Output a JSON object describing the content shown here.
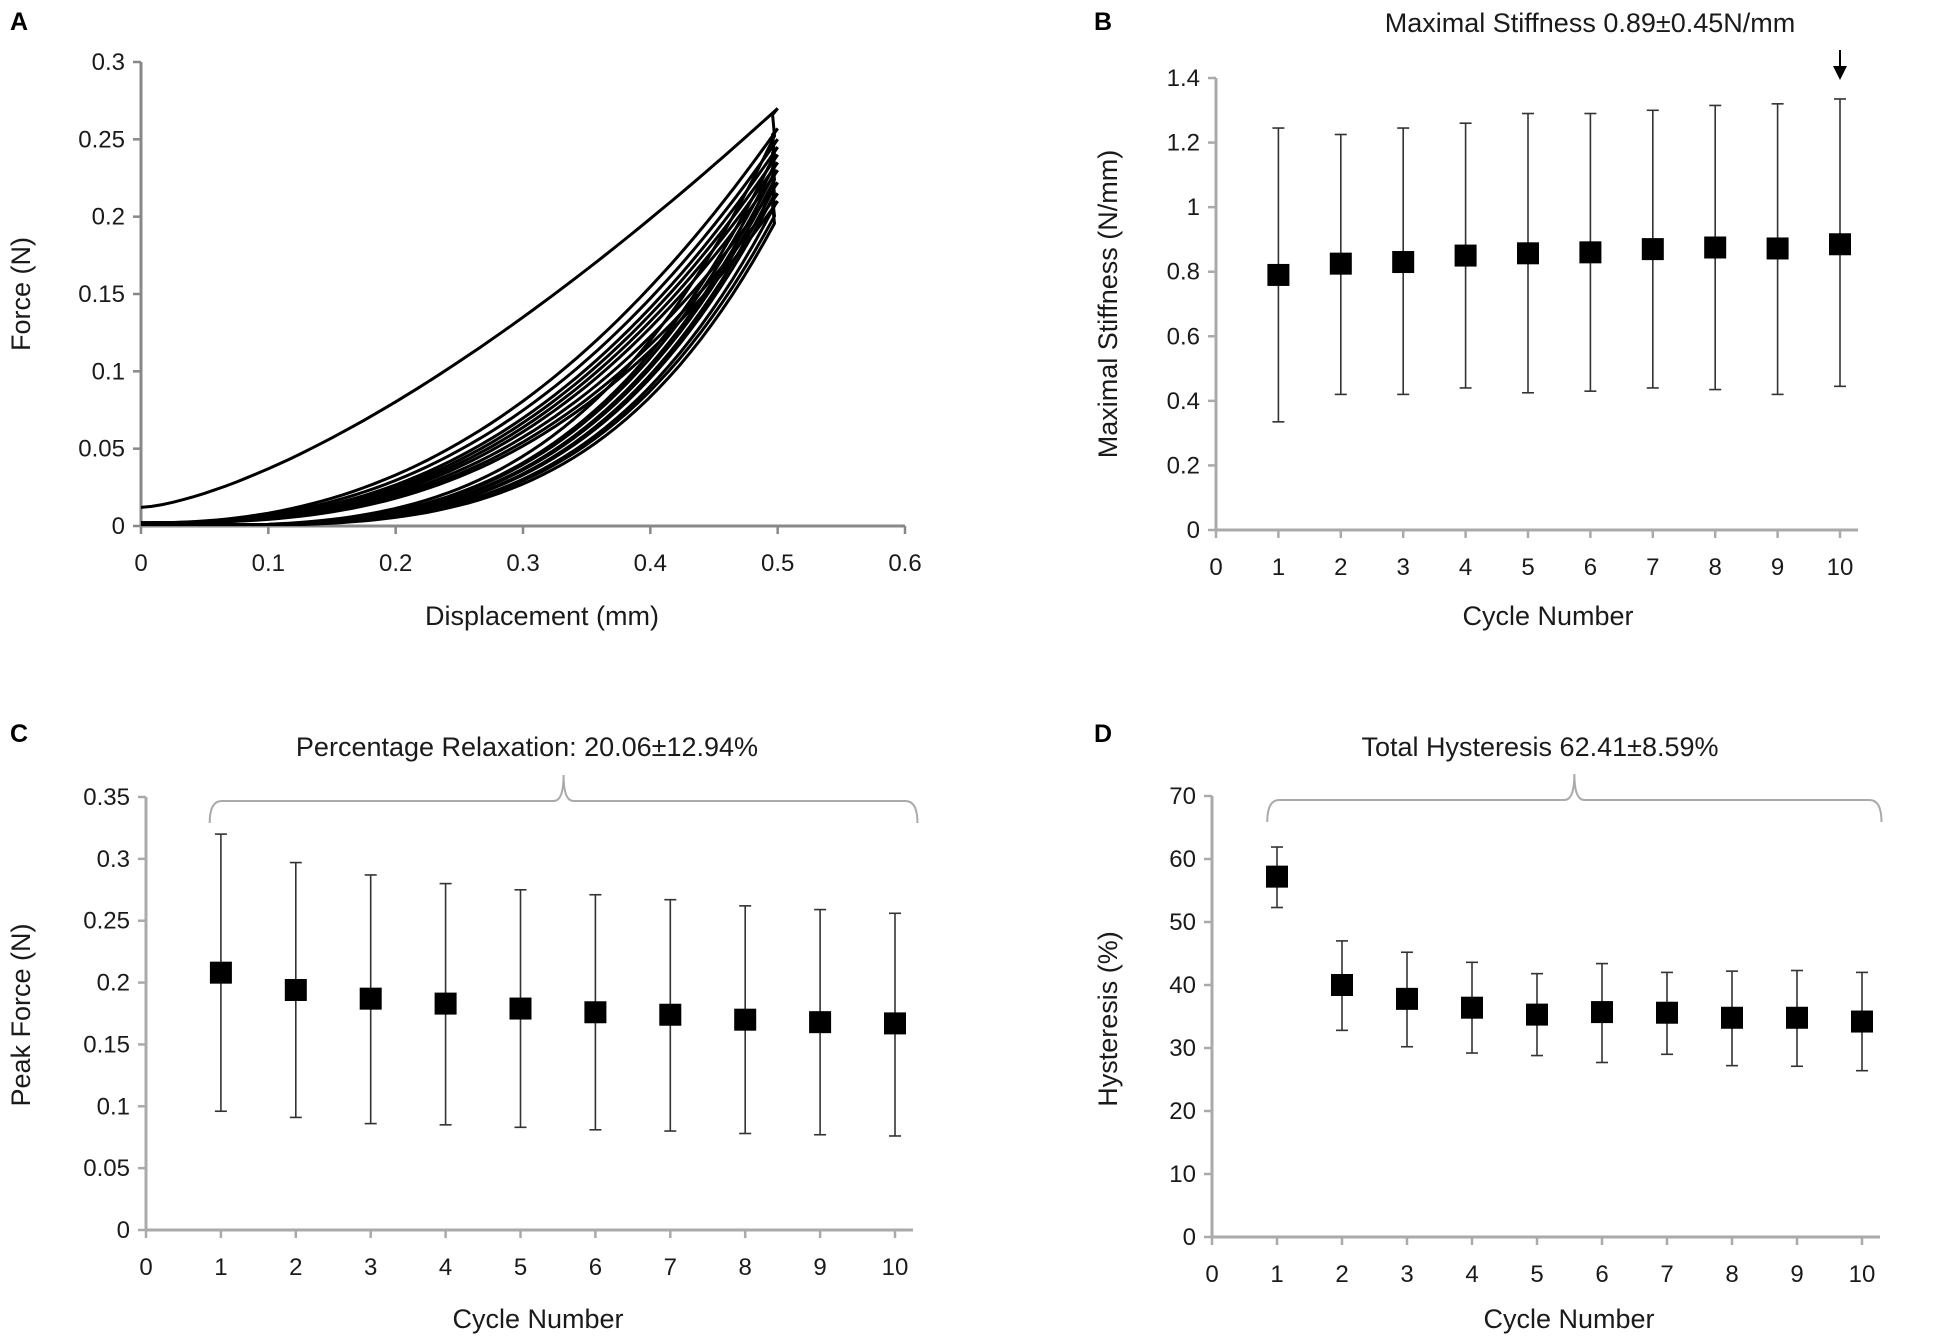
{
  "chart_data": [
    {
      "panel": "A",
      "type": "line",
      "title": "",
      "xlabel": "Displacement (mm)",
      "ylabel": "Force (N)",
      "xlim": [
        0,
        0.6
      ],
      "ylim": [
        0,
        0.3
      ],
      "xticks": [
        "0",
        "0.1",
        "0.2",
        "0.3",
        "0.4",
        "0.5",
        "0.6"
      ],
      "yticks": [
        "0",
        "0.05",
        "0.1",
        "0.15",
        "0.2",
        "0.25",
        "0.3"
      ],
      "max_displacement": 0.5,
      "cycles": [
        {
          "cycle": 1,
          "peak_force": 0.27,
          "start_force": 0.012,
          "loading_exponent": 1.45,
          "unloading_exponent": 3.4
        },
        {
          "cycle": 2,
          "peak_force": 0.257,
          "start_force": 0.002,
          "loading_exponent": 2.3,
          "unloading_exponent": 3.5
        },
        {
          "cycle": 3,
          "peak_force": 0.25,
          "start_force": 0.002,
          "loading_exponent": 2.4,
          "unloading_exponent": 3.5
        },
        {
          "cycle": 4,
          "peak_force": 0.245,
          "start_force": 0.002,
          "loading_exponent": 2.5,
          "unloading_exponent": 3.6
        },
        {
          "cycle": 5,
          "peak_force": 0.24,
          "start_force": 0.002,
          "loading_exponent": 2.55,
          "unloading_exponent": 3.6
        },
        {
          "cycle": 6,
          "peak_force": 0.235,
          "start_force": 0.002,
          "loading_exponent": 2.6,
          "unloading_exponent": 3.7
        },
        {
          "cycle": 7,
          "peak_force": 0.23,
          "start_force": 0.002,
          "loading_exponent": 2.65,
          "unloading_exponent": 3.7
        },
        {
          "cycle": 8,
          "peak_force": 0.222,
          "start_force": 0.002,
          "loading_exponent": 2.7,
          "unloading_exponent": 3.8
        },
        {
          "cycle": 9,
          "peak_force": 0.215,
          "start_force": 0.002,
          "loading_exponent": 2.75,
          "unloading_exponent": 3.8
        },
        {
          "cycle": 10,
          "peak_force": 0.21,
          "start_force": 0.002,
          "loading_exponent": 2.8,
          "unloading_exponent": 3.9
        }
      ]
    },
    {
      "panel": "B",
      "type": "scatter",
      "title": "Maximal Stiffness 0.89±0.45N/mm",
      "xlabel": "Cycle Number",
      "ylabel": "Maximal Stiffness  (N/mm)",
      "xlim": [
        0,
        10
      ],
      "ylim": [
        0,
        1.4
      ],
      "xticks": [
        "0",
        "1",
        "2",
        "3",
        "4",
        "5",
        "6",
        "7",
        "8",
        "9",
        "10"
      ],
      "yticks": [
        "0",
        "0.2",
        "0.4",
        "0.6",
        "0.8",
        "1",
        "1.2",
        "1.4"
      ],
      "x": [
        1,
        2,
        3,
        4,
        5,
        6,
        7,
        8,
        9,
        10
      ],
      "values": [
        0.79,
        0.825,
        0.83,
        0.85,
        0.857,
        0.86,
        0.87,
        0.875,
        0.872,
        0.885
      ],
      "error_low": [
        0.335,
        0.42,
        0.42,
        0.44,
        0.425,
        0.43,
        0.44,
        0.435,
        0.42,
        0.445
      ],
      "error_high": [
        1.245,
        1.225,
        1.245,
        1.26,
        1.29,
        1.29,
        1.3,
        1.315,
        1.32,
        1.335
      ],
      "annotation": {
        "type": "arrow",
        "at_x": 10
      }
    },
    {
      "panel": "C",
      "type": "scatter",
      "title": "Percentage Relaxation: 20.06±12.94%",
      "xlabel": "Cycle Number",
      "ylabel": "Peak Force (N)",
      "xlim": [
        0,
        10
      ],
      "ylim": [
        0,
        0.35
      ],
      "xticks": [
        "0",
        "1",
        "2",
        "3",
        "4",
        "5",
        "6",
        "7",
        "8",
        "9",
        "10"
      ],
      "yticks": [
        "0",
        "0.05",
        "0.1",
        "0.15",
        "0.2",
        "0.25",
        "0.3",
        "0.35"
      ],
      "x": [
        1,
        2,
        3,
        4,
        5,
        6,
        7,
        8,
        9,
        10
      ],
      "values": [
        0.208,
        0.194,
        0.187,
        0.183,
        0.179,
        0.176,
        0.174,
        0.17,
        0.168,
        0.167
      ],
      "error_low": [
        0.096,
        0.091,
        0.086,
        0.085,
        0.083,
        0.081,
        0.08,
        0.078,
        0.077,
        0.076
      ],
      "error_high": [
        0.32,
        0.297,
        0.287,
        0.28,
        0.275,
        0.271,
        0.267,
        0.262,
        0.259,
        0.256
      ],
      "annotation": {
        "type": "bracket",
        "from_x": 0.85,
        "to_x": 10.3
      }
    },
    {
      "panel": "D",
      "type": "scatter",
      "title": "Total Hysteresis 62.41±8.59%",
      "xlabel": "Cycle Number",
      "ylabel": "Hysteresis (%)",
      "xlim": [
        0,
        10
      ],
      "ylim": [
        0,
        70
      ],
      "xticks": [
        "0",
        "1",
        "2",
        "3",
        "4",
        "5",
        "6",
        "7",
        "8",
        "9",
        "10"
      ],
      "yticks": [
        "0",
        "10",
        "20",
        "30",
        "40",
        "50",
        "60",
        "70"
      ],
      "x": [
        1,
        2,
        3,
        4,
        5,
        6,
        7,
        8,
        9,
        10
      ],
      "values": [
        57.2,
        40,
        37.8,
        36.4,
        35.3,
        35.7,
        35.6,
        34.8,
        34.8,
        34.2
      ],
      "error_low": [
        52.3,
        32.8,
        30.2,
        29.2,
        28.8,
        27.7,
        29,
        27.2,
        27.1,
        26.4
      ],
      "error_high": [
        61.9,
        47,
        45.2,
        43.6,
        41.8,
        43.4,
        42,
        42.2,
        42.3,
        42
      ],
      "annotation": {
        "type": "bracket",
        "from_x": 0.85,
        "to_x": 10.3
      }
    }
  ]
}
